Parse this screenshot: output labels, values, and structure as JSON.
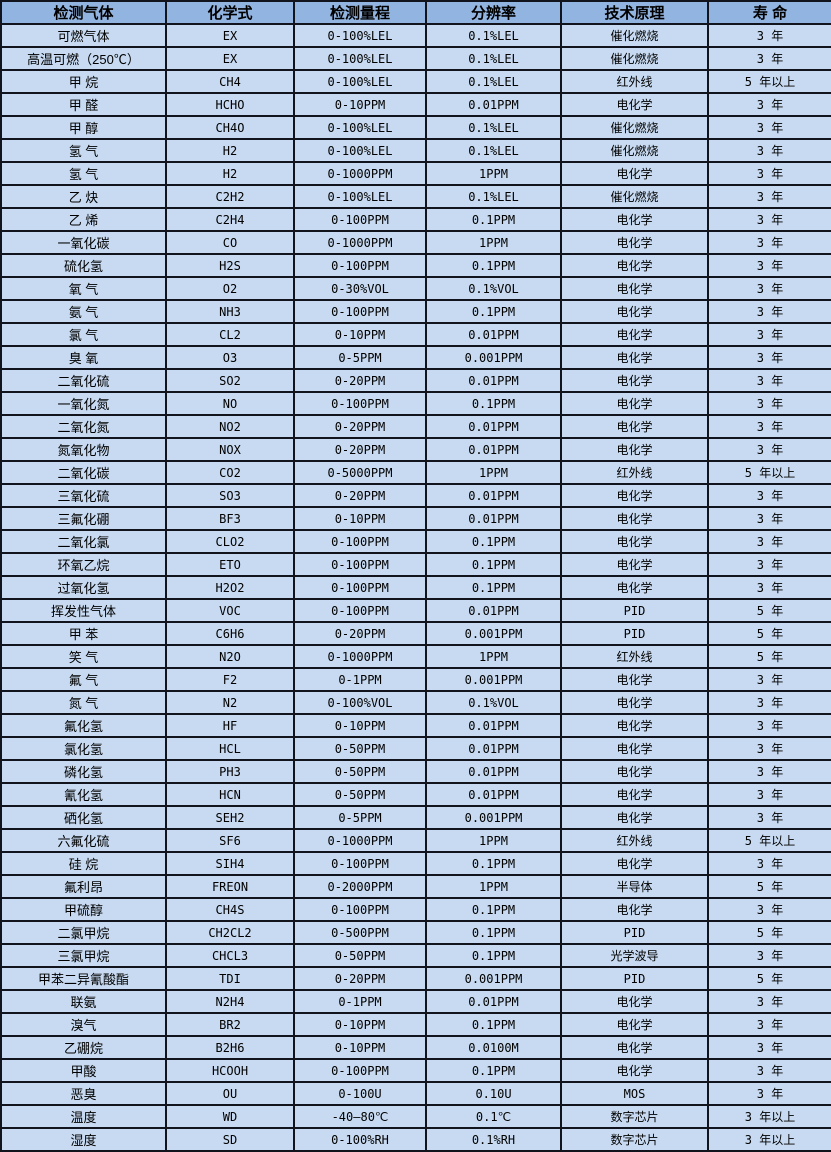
{
  "colors": {
    "header_bg": "#92b4e0",
    "row_bg": "#c7daf1",
    "border": "#11141c",
    "text": "#000000"
  },
  "table": {
    "columns": [
      "检测气体",
      "化学式",
      "检测量程",
      "分辨率",
      "技术原理",
      "寿 命"
    ],
    "rows": [
      [
        "可燃气体",
        "EX",
        "0-100%LEL",
        "0.1%LEL",
        "催化燃烧",
        "3 年"
      ],
      [
        "高温可燃（250℃）",
        "EX",
        "0-100%LEL",
        "0.1%LEL",
        "催化燃烧",
        "3 年"
      ],
      [
        "甲 烷",
        "CH4",
        "0-100%LEL",
        "0.1%LEL",
        "红外线",
        "5 年以上"
      ],
      [
        "甲 醛",
        "HCHO",
        "0-10PPM",
        "0.01PPM",
        "电化学",
        "3 年"
      ],
      [
        "甲 醇",
        "CH4O",
        "0-100%LEL",
        "0.1%LEL",
        "催化燃烧",
        "3 年"
      ],
      [
        "氢 气",
        "H2",
        "0-100%LEL",
        "0.1%LEL",
        "催化燃烧",
        "3 年"
      ],
      [
        "氢 气",
        "H2",
        "0-1000PPM",
        "1PPM",
        "电化学",
        "3 年"
      ],
      [
        "乙 炔",
        "C2H2",
        "0-100%LEL",
        "0.1%LEL",
        "催化燃烧",
        "3 年"
      ],
      [
        "乙 烯",
        "C2H4",
        "0-100PPM",
        "0.1PPM",
        "电化学",
        "3 年"
      ],
      [
        "一氧化碳",
        "CO",
        "0-1000PPM",
        "1PPM",
        "电化学",
        "3 年"
      ],
      [
        "硫化氢",
        "H2S",
        "0-100PPM",
        "0.1PPM",
        "电化学",
        "3 年"
      ],
      [
        "氧 气",
        "O2",
        "0-30%VOL",
        "0.1%VOL",
        "电化学",
        "3 年"
      ],
      [
        "氨 气",
        "NH3",
        "0-100PPM",
        "0.1PPM",
        "电化学",
        "3 年"
      ],
      [
        "氯 气",
        "CL2",
        "0-10PPM",
        "0.01PPM",
        "电化学",
        "3 年"
      ],
      [
        "臭 氧",
        "O3",
        "0-5PPM",
        "0.001PPM",
        "电化学",
        "3 年"
      ],
      [
        "二氧化硫",
        "SO2",
        "0-20PPM",
        "0.01PPM",
        "电化学",
        "3 年"
      ],
      [
        "一氧化氮",
        "NO",
        "0-100PPM",
        "0.1PPM",
        "电化学",
        "3 年"
      ],
      [
        "二氧化氮",
        "NO2",
        "0-20PPM",
        "0.01PPM",
        "电化学",
        "3 年"
      ],
      [
        "氮氧化物",
        "NOX",
        "0-20PPM",
        "0.01PPM",
        "电化学",
        "3 年"
      ],
      [
        "二氧化碳",
        "CO2",
        "0-5000PPM",
        "1PPM",
        "红外线",
        "5 年以上"
      ],
      [
        "三氧化硫",
        "SO3",
        "0-20PPM",
        "0.01PPM",
        "电化学",
        "3 年"
      ],
      [
        "三氟化硼",
        "BF3",
        "0-10PPM",
        "0.01PPM",
        "电化学",
        "3 年"
      ],
      [
        "二氧化氯",
        "CLO2",
        "0-100PPM",
        "0.1PPM",
        "电化学",
        "3 年"
      ],
      [
        "环氧乙烷",
        "ETO",
        "0-100PPM",
        "0.1PPM",
        "电化学",
        "3 年"
      ],
      [
        "过氧化氢",
        "H2O2",
        "0-100PPM",
        "0.1PPM",
        "电化学",
        "3 年"
      ],
      [
        "挥发性气体",
        "VOC",
        "0-100PPM",
        "0.01PPM",
        "PID",
        "5 年"
      ],
      [
        "甲 苯",
        "C6H6",
        "0-20PPM",
        "0.001PPM",
        "PID",
        "5 年"
      ],
      [
        "笑 气",
        "N2O",
        "0-1000PPM",
        "1PPM",
        "红外线",
        "5 年"
      ],
      [
        "氟 气",
        "F2",
        "0-1PPM",
        "0.001PPM",
        "电化学",
        "3 年"
      ],
      [
        "氮 气",
        "N2",
        "0-100%VOL",
        "0.1%VOL",
        "电化学",
        "3 年"
      ],
      [
        "氟化氢",
        "HF",
        "0-10PPM",
        "0.01PPM",
        "电化学",
        "3 年"
      ],
      [
        "氯化氢",
        "HCL",
        "0-50PPM",
        "0.01PPM",
        "电化学",
        "3 年"
      ],
      [
        "磷化氢",
        "PH3",
        "0-50PPM",
        "0.01PPM",
        "电化学",
        "3 年"
      ],
      [
        "氰化氢",
        "HCN",
        "0-50PPM",
        "0.01PPM",
        "电化学",
        "3 年"
      ],
      [
        "硒化氢",
        "SEH2",
        "0-5PPM",
        "0.001PPM",
        "电化学",
        "3 年"
      ],
      [
        "六氟化硫",
        "SF6",
        "0-1000PPM",
        "1PPM",
        "红外线",
        "5 年以上"
      ],
      [
        "硅 烷",
        "SIH4",
        "0-100PPM",
        "0.1PPM",
        "电化学",
        "3 年"
      ],
      [
        "氟利昂",
        "FREON",
        "0-2000PPM",
        "1PPM",
        "半导体",
        "5 年"
      ],
      [
        "甲硫醇",
        "CH4S",
        "0-100PPM",
        "0.1PPM",
        "电化学",
        "3 年"
      ],
      [
        "二氯甲烷",
        "CH2CL2",
        "0-500PPM",
        "0.1PPM",
        "PID",
        "5 年"
      ],
      [
        "三氯甲烷",
        "CHCL3",
        "0-50PPM",
        "0.1PPM",
        "光学波导",
        "3 年"
      ],
      [
        "甲苯二异氰酸酯",
        "TDI",
        "0-20PPM",
        "0.001PPM",
        "PID",
        "5 年"
      ],
      [
        "联氨",
        "N2H4",
        "0-1PPM",
        "0.01PPM",
        "电化学",
        "3 年"
      ],
      [
        "溴气",
        "BR2",
        "0-10PPM",
        "0.1PPM",
        "电化学",
        "3 年"
      ],
      [
        "乙硼烷",
        "B2H6",
        "0-10PPM",
        "0.0100M",
        "电化学",
        "3 年"
      ],
      [
        "甲酸",
        "HCOOH",
        "0-100PPM",
        "0.1PPM",
        "电化学",
        "3 年"
      ],
      [
        "恶臭",
        "OU",
        "0-100U",
        "0.10U",
        "MOS",
        "3 年"
      ],
      [
        "温度",
        "WD",
        "-40—80℃",
        "0.1℃",
        "数字芯片",
        "3 年以上"
      ],
      [
        "湿度",
        "SD",
        "0-100%RH",
        "0.1%RH",
        "数字芯片",
        "3 年以上"
      ]
    ]
  }
}
